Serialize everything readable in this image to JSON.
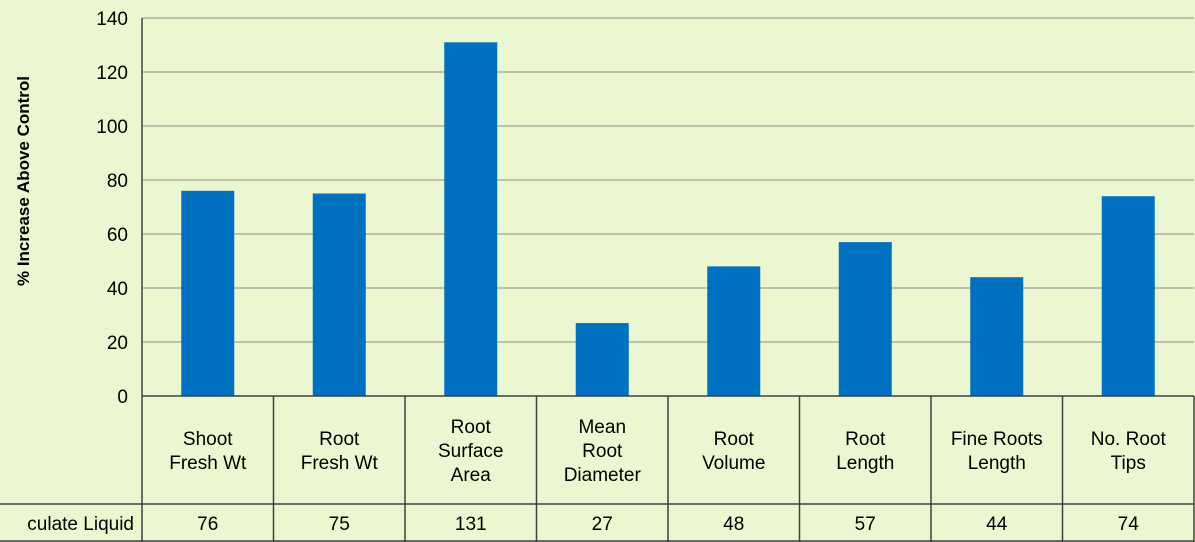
{
  "chart_data": {
    "type": "bar",
    "ylabel": "% Increase Above Control",
    "ylim": [
      0,
      140
    ],
    "yticks": [
      0,
      20,
      40,
      60,
      80,
      100,
      120,
      140
    ],
    "grid": true,
    "categories": [
      [
        "Shoot",
        "Fresh Wt"
      ],
      [
        "Root",
        "Fresh Wt"
      ],
      [
        "Root",
        "Surface",
        "Area"
      ],
      [
        "Mean",
        "Root",
        "Diameter"
      ],
      [
        "Root",
        "Volume"
      ],
      [
        "Root",
        "Length"
      ],
      [
        "Fine Roots",
        "Length"
      ],
      [
        "No. Root",
        "Tips"
      ]
    ],
    "series": [
      {
        "name": "culate Liquid",
        "color": "#0070c0",
        "values": [
          76,
          75,
          131,
          27,
          48,
          57,
          44,
          74
        ]
      }
    ],
    "legend": "data-table"
  }
}
